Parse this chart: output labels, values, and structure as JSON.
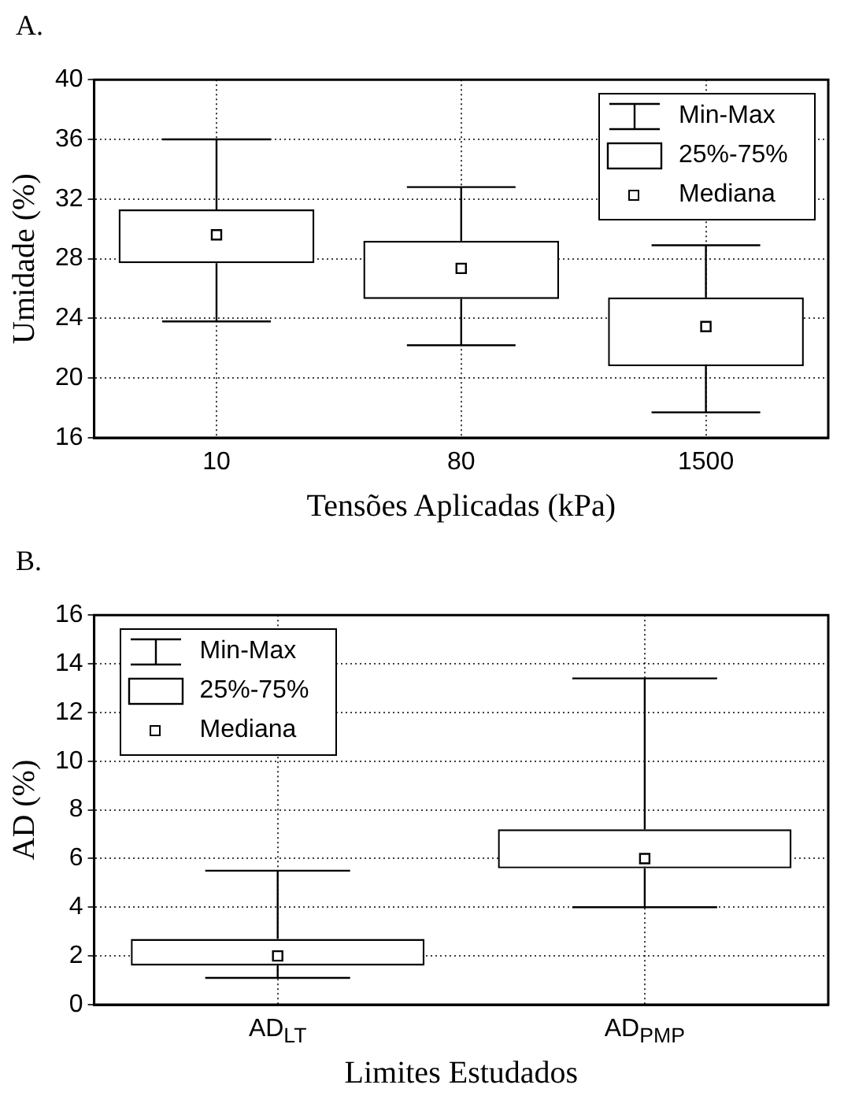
{
  "chart_data": [
    {
      "type": "box",
      "title": "A.",
      "xlabel": "Tensões Aplicadas (kPa)",
      "ylabel": "Umidade (%)",
      "categories": [
        "10",
        "80",
        "1500"
      ],
      "color": "#000000",
      "boxes": [
        {
          "low": 23.8,
          "q1": 27.7,
          "median": 29.6,
          "q3": 31.3,
          "high": 36
        },
        {
          "low": 22.2,
          "q1": 25.3,
          "median": 27.35,
          "q3": 29.2,
          "high": 32.8
        },
        {
          "low": 17.7,
          "q1": 20.8,
          "median": 23.45,
          "q3": 25.4,
          "high": 28.9
        }
      ],
      "ylim": [
        16,
        40
      ],
      "yticks": [
        16,
        20,
        24,
        28,
        32,
        36,
        40
      ],
      "grid": true,
      "annotations": [
        "Min-Max",
        "25%-75%",
        "Mediana"
      ]
    },
    {
      "type": "box",
      "title": "B.",
      "xlabel": "Limites Estudados",
      "ylabel": "AD (%)",
      "categories": [
        "AD$_{LT}$",
        "AD$_{PMP}$"
      ],
      "color": "#000000",
      "boxes": [
        {
          "low": 1.1,
          "q1": 1.6,
          "median": 2.0,
          "q3": 2.7,
          "high": 5.5
        },
        {
          "low": 4.0,
          "q1": 5.6,
          "median": 6.0,
          "q3": 7.2,
          "high": 13.4
        }
      ],
      "ylim": [
        0,
        16
      ],
      "yticks": [
        0,
        2,
        4,
        6,
        8,
        10,
        12,
        14,
        16
      ],
      "grid": true,
      "annotations": [
        "Min-Max",
        "25%-75%",
        "Mediana"
      ]
    }
  ]
}
